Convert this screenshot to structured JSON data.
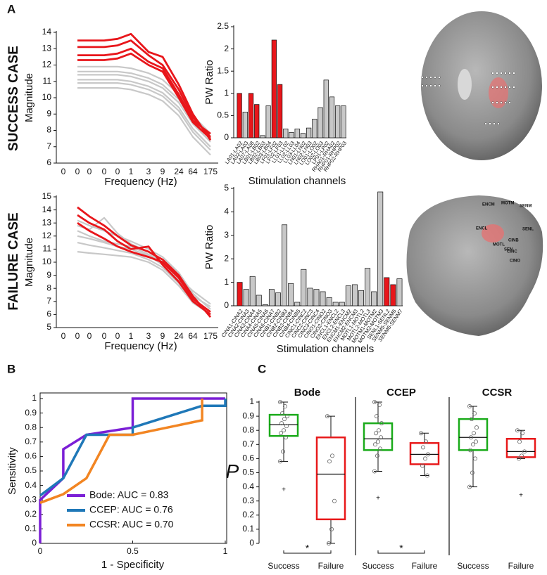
{
  "panel_labels": [
    "A",
    "B",
    "C"
  ],
  "row_labels": [
    "SUCCESS CASE",
    "FAILURE CASE"
  ],
  "brain_labels": [
    "ENCM",
    "MOTM",
    "SENM",
    "ENCL",
    "SENL",
    "MOTL",
    "CINB",
    "CINC",
    "CINO",
    "SEN"
  ],
  "chart_data": [
    {
      "type": "line",
      "y_label": "Magnitude",
      "x_label": "Frequency (Hz)",
      "categories": [
        "0",
        "0",
        "0",
        "0",
        "0",
        "1",
        "3",
        "9",
        "24",
        "64",
        "175"
      ],
      "ylim": [
        6,
        14
      ],
      "yticks": [
        6,
        7,
        8,
        9,
        10,
        11,
        12,
        13,
        14
      ],
      "series": [
        {
          "color": "#c8c8c8",
          "values": [
            null,
            11.9,
            11.9,
            11.9,
            11.9,
            11.8,
            11.5,
            11.1,
            10.2,
            8.9,
            7.8
          ]
        },
        {
          "color": "#c8c8c8",
          "values": [
            null,
            11.6,
            11.6,
            11.6,
            11.6,
            11.5,
            11.2,
            10.8,
            9.9,
            8.6,
            7.5
          ]
        },
        {
          "color": "#c8c8c8",
          "values": [
            null,
            11.4,
            11.4,
            11.4,
            11.4,
            11.3,
            11,
            10.6,
            9.7,
            8.4,
            7.3
          ]
        },
        {
          "color": "#c8c8c8",
          "values": [
            null,
            11.1,
            11.1,
            11.1,
            11.1,
            11,
            10.7,
            10.3,
            9.4,
            8.1,
            7
          ]
        },
        {
          "color": "#c8c8c8",
          "values": [
            null,
            10.9,
            10.9,
            10.9,
            10.9,
            10.8,
            10.5,
            10.1,
            9.2,
            7.9,
            6.8
          ]
        },
        {
          "color": "#c8c8c8",
          "values": [
            null,
            10.6,
            10.6,
            10.6,
            10.6,
            10.5,
            10.2,
            9.8,
            8.9,
            7.6,
            6.5
          ]
        },
        {
          "color": "#e8161b",
          "values": [
            null,
            13.5,
            13.5,
            13.5,
            13.6,
            13.9,
            12.8,
            12.5,
            10.8,
            9,
            7.4
          ]
        },
        {
          "color": "#e8161b",
          "values": [
            null,
            13.1,
            13.1,
            13.1,
            13.2,
            13.5,
            12.6,
            12,
            10.5,
            8.8,
            7.6
          ]
        },
        {
          "color": "#e8161b",
          "values": [
            null,
            12.6,
            12.6,
            12.6,
            12.7,
            13,
            12.2,
            11.8,
            10.2,
            8.6,
            7.8
          ]
        },
        {
          "color": "#e8161b",
          "values": [
            null,
            12.3,
            12.3,
            12.3,
            12.4,
            12.7,
            12,
            11.6,
            10,
            8.5,
            7.5
          ]
        }
      ]
    },
    {
      "type": "bar",
      "y_label": "PW Ratio",
      "x_label": "Stimulation channels",
      "categories": [
        "LA01-LA02",
        "LA02-LA03",
        "LA07-LA08",
        "LB01-LB02",
        "LB02-LB03",
        "LB03-LB04",
        "LF01-LF02",
        "LF02-LF03",
        "LL01-LL02",
        "LL02-LL03",
        "LL03-LL04",
        "LN01-LN02",
        "LN02-LN03",
        "LO01-LO02",
        "LO02-LO03",
        "LP01-LP02",
        "RHA01-RHA02",
        "RHP01-RHP02",
        "RHP02-RHP03"
      ],
      "values": [
        1.0,
        0.58,
        1.0,
        0.75,
        0.05,
        0.72,
        2.2,
        1.2,
        0.2,
        0.12,
        0.2,
        0.1,
        0.22,
        0.42,
        0.68,
        1.3,
        0.92,
        0.72,
        0.72
      ],
      "colors": [
        "#e8161b",
        "#c8c8c8",
        "#e8161b",
        "#e8161b",
        "#c8c8c8",
        "#c8c8c8",
        "#e8161b",
        "#e8161b",
        "#c8c8c8",
        "#c8c8c8",
        "#c8c8c8",
        "#c8c8c8",
        "#c8c8c8",
        "#c8c8c8",
        "#c8c8c8",
        "#c8c8c8",
        "#c8c8c8",
        "#c8c8c8",
        "#c8c8c8"
      ],
      "ylim": [
        0,
        2.5
      ],
      "yticks": [
        0,
        0.5,
        1,
        1.5,
        2,
        2.5
      ]
    },
    {
      "type": "line",
      "y_label": "Magnitude",
      "x_label": "Frequency (Hz)",
      "categories": [
        "0",
        "0",
        "0",
        "0",
        "0",
        "1",
        "3",
        "9",
        "24",
        "64",
        "175"
      ],
      "ylim": [
        5,
        15
      ],
      "yticks": [
        5,
        6,
        7,
        8,
        9,
        10,
        11,
        12,
        13,
        14,
        15
      ],
      "series": [
        {
          "color": "#c8c8c8",
          "values": [
            null,
            13.2,
            12.8,
            12.4,
            12,
            11.6,
            11,
            10.4,
            9.2,
            7.6,
            6.4
          ]
        },
        {
          "color": "#c8c8c8",
          "values": [
            null,
            12.8,
            12.5,
            13.4,
            12.2,
            11.4,
            10.8,
            10,
            9,
            7.4,
            6.6
          ]
        },
        {
          "color": "#c8c8c8",
          "values": [
            null,
            12.4,
            12,
            11.6,
            11.4,
            11.2,
            10.6,
            10,
            8.8,
            7.8,
            6.8
          ]
        },
        {
          "color": "#c8c8c8",
          "values": [
            null,
            12,
            11.8,
            11.5,
            11.2,
            11,
            10.5,
            9.8,
            8.6,
            7.2,
            6.2
          ]
        },
        {
          "color": "#c8c8c8",
          "values": [
            null,
            11.5,
            11.3,
            11.1,
            10.9,
            10.7,
            10.2,
            9.6,
            8.4,
            7,
            6
          ]
        },
        {
          "color": "#c8c8c8",
          "values": [
            null,
            10.8,
            10.7,
            10.6,
            10.5,
            10.4,
            10,
            9.4,
            8.2,
            6.9,
            6
          ]
        },
        {
          "color": "#e8161b",
          "values": [
            null,
            14.2,
            13.5,
            12.8,
            12,
            11.3,
            10.8,
            10.2,
            9,
            7.4,
            5.8
          ]
        },
        {
          "color": "#e8161b",
          "values": [
            null,
            13.6,
            13,
            12.5,
            11.6,
            11,
            11.2,
            9.8,
            8.5,
            7,
            6
          ]
        },
        {
          "color": "#e8161b",
          "values": [
            null,
            13,
            12.4,
            11.8,
            11.2,
            10.8,
            10.4,
            10,
            8.8,
            7.2,
            6.2
          ]
        }
      ]
    },
    {
      "type": "bar",
      "y_label": "PW Ratio",
      "x_label": "Stimulation channels",
      "categories": [
        "CINA1-CINA2",
        "CINA2-CINA3",
        "CINA3-CINA4",
        "CINA4-CINA5",
        "CINA5-CINA6",
        "CINA6-CINA7",
        "CINB1-CINB2",
        "CINB2-CINB3",
        "CINB3-CINB4",
        "CINB4-CINB5",
        "CINC1-CINC2",
        "CINC2-CINC3",
        "CINC3-CINC4",
        "CINO1-CINO2",
        "CINO2-CINO3",
        "ENCL1-ENCL2",
        "ENCL2-ENCL3",
        "ENCM1-ENCM2",
        "ENCM2-ENCM3",
        "MOTL1-MOTL2",
        "MOTL2-MOTL3",
        "MOTM1-MOTM2",
        "MOTM2-MOTM3",
        "SENL1-SENL2",
        "SENM5-SENM6",
        "SENM6-SENM7"
      ],
      "values": [
        1.0,
        0.7,
        1.25,
        0.45,
        0.05,
        0.7,
        0.55,
        3.45,
        0.95,
        0.15,
        1.55,
        0.75,
        0.7,
        0.6,
        0.35,
        0.15,
        0.15,
        0.85,
        0.9,
        0.65,
        1.6,
        0.6,
        4.85,
        1.2,
        0.9,
        1.15
      ],
      "colors": [
        "#e8161b",
        "#c8c8c8",
        "#c8c8c8",
        "#c8c8c8",
        "#c8c8c8",
        "#c8c8c8",
        "#c8c8c8",
        "#c8c8c8",
        "#c8c8c8",
        "#c8c8c8",
        "#c8c8c8",
        "#c8c8c8",
        "#c8c8c8",
        "#c8c8c8",
        "#c8c8c8",
        "#c8c8c8",
        "#c8c8c8",
        "#c8c8c8",
        "#c8c8c8",
        "#c8c8c8",
        "#c8c8c8",
        "#c8c8c8",
        "#c8c8c8",
        "#e8161b",
        "#e8161b",
        "#c8c8c8"
      ],
      "ylim": [
        0,
        5
      ],
      "yticks": [
        0,
        1,
        2,
        3,
        4,
        5
      ]
    },
    {
      "type": "roc",
      "x_label": "1 - Specificity",
      "y_label": "Sensitivity",
      "xlim": [
        0,
        1
      ],
      "ylim": [
        0,
        1
      ],
      "xticks": [
        0,
        0.5,
        1
      ],
      "yticks": [
        0,
        0.1,
        0.2,
        0.3,
        0.4,
        0.5,
        0.6,
        0.7,
        0.8,
        0.9,
        1
      ],
      "legend": "lower right",
      "series": [
        {
          "name": "Bode: AUC = 0.83",
          "color": "#7b1fd6",
          "x": [
            0,
            0,
            0.125,
            0.125,
            0.25,
            0.5,
            0.5,
            1
          ],
          "values": [
            0,
            0.3,
            0.45,
            0.65,
            0.75,
            0.8,
            1,
            1
          ]
        },
        {
          "name": "CCEP: AUC = 0.76",
          "color": "#1f78b8",
          "x": [
            0,
            0.125,
            0.25,
            0.5,
            0.5,
            0.875,
            1,
            1
          ],
          "values": [
            0.33,
            0.45,
            0.75,
            0.75,
            0.8,
            0.95,
            0.95,
            1
          ]
        },
        {
          "name": "CCSR: AUC = 0.70",
          "color": "#f28522",
          "x": [
            0,
            0.125,
            0.25,
            0.375,
            0.5,
            0.875,
            0.875
          ],
          "values": [
            0.28,
            0.34,
            0.45,
            0.75,
            0.75,
            0.85,
            1
          ]
        }
      ]
    },
    {
      "type": "box",
      "title": "Bode",
      "y_label": "P",
      "ylim": [
        0,
        1
      ],
      "yticks": [
        0,
        0.1,
        0.2,
        0.3,
        0.4,
        0.5,
        0.6,
        0.7,
        0.8,
        0.9,
        1
      ],
      "categories": [
        "Success",
        "Failure"
      ],
      "significance": "*",
      "boxes": [
        {
          "color": "#1aab1a",
          "whisker_low": 0.58,
          "q1": 0.76,
          "median": 0.84,
          "q3": 0.91,
          "whisker_high": 1,
          "outliers": [
            0.38
          ],
          "points": [
            1,
            0.97,
            0.92,
            0.9,
            0.88,
            0.85,
            0.83,
            0.8,
            0.78,
            0.75,
            0.65,
            0.58
          ]
        },
        {
          "color": "#e8191a",
          "whisker_low": 0,
          "q1": 0.17,
          "median": 0.49,
          "q3": 0.75,
          "whisker_high": 0.9,
          "outliers": [],
          "points": [
            0.9,
            0.62,
            0.58,
            0.3,
            0.1,
            0
          ]
        }
      ]
    },
    {
      "type": "box",
      "title": "CCEP",
      "ylim": [
        0,
        1
      ],
      "categories": [
        "Success",
        "Failure"
      ],
      "significance": "*",
      "boxes": [
        {
          "color": "#1aab1a",
          "whisker_low": 0.51,
          "q1": 0.66,
          "median": 0.74,
          "q3": 0.85,
          "whisker_high": 1,
          "outliers": [
            0.32
          ],
          "points": [
            1,
            0.98,
            0.9,
            0.85,
            0.8,
            0.78,
            0.75,
            0.72,
            0.7,
            0.67,
            0.62,
            0.51
          ]
        },
        {
          "color": "#e8191a",
          "whisker_low": 0.48,
          "q1": 0.56,
          "median": 0.63,
          "q3": 0.71,
          "whisker_high": 0.78,
          "outliers": [],
          "points": [
            0.78,
            0.72,
            0.68,
            0.63,
            0.6,
            0.55,
            0.48
          ]
        }
      ]
    },
    {
      "type": "box",
      "title": "CCSR",
      "ylim": [
        0,
        1
      ],
      "categories": [
        "Success",
        "Failure"
      ],
      "boxes": [
        {
          "color": "#1aab1a",
          "whisker_low": 0.4,
          "q1": 0.66,
          "median": 0.75,
          "q3": 0.88,
          "whisker_high": 0.97,
          "outliers": [],
          "points": [
            0.97,
            0.92,
            0.88,
            0.82,
            0.78,
            0.75,
            0.72,
            0.7,
            0.66,
            0.6,
            0.5,
            0.4
          ]
        },
        {
          "color": "#e8191a",
          "whisker_low": 0.6,
          "q1": 0.61,
          "median": 0.65,
          "q3": 0.74,
          "whisker_high": 0.8,
          "outliers": [
            0.34
          ],
          "points": [
            0.8,
            0.78,
            0.72,
            0.65,
            0.62,
            0.6
          ]
        }
      ]
    }
  ]
}
